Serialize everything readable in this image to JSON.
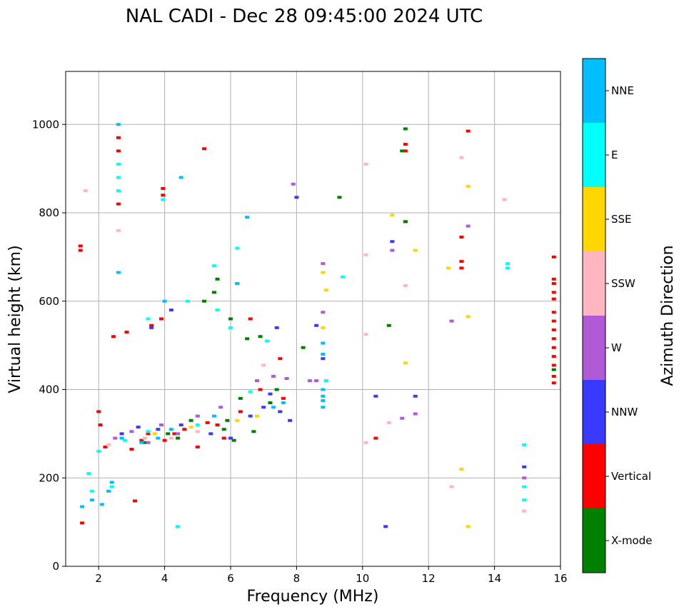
{
  "chart_data": {
    "type": "scatter",
    "title": "NAL CADI - Dec 28 09:45:00 2024 UTC",
    "xlabel": "Frequency (MHz)",
    "ylabel": "Virtual height (km)",
    "xlim": [
      1,
      16
    ],
    "ylim": [
      0,
      1120
    ],
    "xticks": [
      2,
      4,
      6,
      8,
      10,
      12,
      14,
      16
    ],
    "yticks": [
      0,
      200,
      400,
      600,
      800,
      1000
    ],
    "grid": true,
    "colorbar": {
      "title": "Azimuth Direction",
      "categories": [
        {
          "name": "X-mode",
          "color": "#008000"
        },
        {
          "name": "Vertical",
          "color": "#ff0000"
        },
        {
          "name": "NNW",
          "color": "#3a3aff"
        },
        {
          "name": "W",
          "color": "#b05ad8"
        },
        {
          "name": "SSW",
          "color": "#ffb6c1"
        },
        {
          "name": "SSE",
          "color": "#ffd700"
        },
        {
          "name": "E",
          "color": "#00ffff"
        },
        {
          "name": "NNE",
          "color": "#00bfff"
        }
      ]
    },
    "series": [
      {
        "name": "Vertical",
        "points": [
          [
            1.45,
            725
          ],
          [
            1.45,
            715
          ],
          [
            1.5,
            98
          ],
          [
            2.0,
            350
          ],
          [
            2.05,
            320
          ],
          [
            2.2,
            270
          ],
          [
            2.45,
            520
          ],
          [
            2.6,
            970
          ],
          [
            2.6,
            940
          ],
          [
            2.6,
            820
          ],
          [
            2.85,
            530
          ],
          [
            3.0,
            265
          ],
          [
            3.3,
            285
          ],
          [
            3.5,
            300
          ],
          [
            3.6,
            545
          ],
          [
            3.9,
            560
          ],
          [
            3.95,
            855
          ],
          [
            3.95,
            840
          ],
          [
            4.0,
            285
          ],
          [
            4.3,
            300
          ],
          [
            4.6,
            310
          ],
          [
            5.0,
            270
          ],
          [
            5.2,
            945
          ],
          [
            5.3,
            325
          ],
          [
            5.6,
            320
          ],
          [
            5.8,
            290
          ],
          [
            6.2,
            640
          ],
          [
            6.3,
            350
          ],
          [
            6.6,
            560
          ],
          [
            6.9,
            400
          ],
          [
            7.5,
            470
          ],
          [
            7.6,
            380
          ],
          [
            10.4,
            290
          ],
          [
            11.3,
            955
          ],
          [
            11.3,
            940
          ],
          [
            11.3,
            780
          ],
          [
            13.0,
            745
          ],
          [
            13.0,
            690
          ],
          [
            13.0,
            675
          ],
          [
            13.2,
            985
          ],
          [
            15.8,
            700
          ],
          [
            15.8,
            650
          ],
          [
            15.8,
            640
          ],
          [
            15.8,
            620
          ],
          [
            15.8,
            605
          ],
          [
            15.8,
            575
          ],
          [
            15.8,
            555
          ],
          [
            15.8,
            535
          ],
          [
            15.8,
            515
          ],
          [
            15.8,
            495
          ],
          [
            15.8,
            475
          ],
          [
            15.8,
            455
          ],
          [
            15.8,
            430
          ],
          [
            15.8,
            415
          ],
          [
            3.1,
            148
          ]
        ]
      },
      {
        "name": "X-mode",
        "points": [
          [
            3.4,
            280
          ],
          [
            4.1,
            300
          ],
          [
            4.4,
            290
          ],
          [
            5.2,
            600
          ],
          [
            5.5,
            620
          ],
          [
            5.8,
            310
          ],
          [
            5.9,
            330
          ],
          [
            6.1,
            285
          ],
          [
            6.3,
            380
          ],
          [
            6.5,
            515
          ],
          [
            6.7,
            305
          ],
          [
            6.9,
            520
          ],
          [
            7.2,
            370
          ],
          [
            7.4,
            400
          ],
          [
            8.2,
            495
          ],
          [
            9.3,
            835
          ],
          [
            10.8,
            545
          ],
          [
            11.2,
            940
          ],
          [
            11.3,
            990
          ],
          [
            11.3,
            780
          ],
          [
            15.8,
            445
          ],
          [
            6.0,
            560
          ],
          [
            5.6,
            650
          ],
          [
            4.8,
            330
          ]
        ]
      },
      {
        "name": "NNW",
        "points": [
          [
            2.7,
            300
          ],
          [
            3.2,
            315
          ],
          [
            3.8,
            310
          ],
          [
            4.5,
            320
          ],
          [
            5.4,
            300
          ],
          [
            6.0,
            290
          ],
          [
            6.6,
            340
          ],
          [
            7.0,
            360
          ],
          [
            7.2,
            390
          ],
          [
            7.5,
            350
          ],
          [
            7.8,
            330
          ],
          [
            8.0,
            835
          ],
          [
            8.6,
            545
          ],
          [
            8.8,
            470
          ],
          [
            10.4,
            385
          ],
          [
            10.7,
            90
          ],
          [
            10.9,
            735
          ],
          [
            11.6,
            385
          ],
          [
            14.9,
            225
          ],
          [
            3.6,
            540
          ],
          [
            4.2,
            580
          ],
          [
            7.4,
            540
          ]
        ]
      },
      {
        "name": "W",
        "points": [
          [
            2.5,
            290
          ],
          [
            3.0,
            305
          ],
          [
            3.5,
            280
          ],
          [
            3.9,
            320
          ],
          [
            4.4,
            300
          ],
          [
            5.0,
            340
          ],
          [
            5.7,
            360
          ],
          [
            6.8,
            420
          ],
          [
            7.3,
            430
          ],
          [
            7.7,
            425
          ],
          [
            7.9,
            865
          ],
          [
            8.4,
            420
          ],
          [
            8.6,
            420
          ],
          [
            8.8,
            685
          ],
          [
            8.8,
            575
          ],
          [
            10.9,
            715
          ],
          [
            11.2,
            335
          ],
          [
            11.6,
            345
          ],
          [
            12.7,
            555
          ],
          [
            13.2,
            770
          ],
          [
            14.9,
            200
          ]
        ]
      },
      {
        "name": "SSW",
        "points": [
          [
            1.6,
            850
          ],
          [
            2.3,
            275
          ],
          [
            2.6,
            760
          ],
          [
            3.4,
            290
          ],
          [
            4.2,
            290
          ],
          [
            5.0,
            305
          ],
          [
            7.0,
            455
          ],
          [
            10.1,
            910
          ],
          [
            10.1,
            705
          ],
          [
            10.1,
            525
          ],
          [
            10.1,
            280
          ],
          [
            10.8,
            325
          ],
          [
            11.3,
            635
          ],
          [
            12.7,
            180
          ],
          [
            13.0,
            925
          ],
          [
            14.3,
            830
          ],
          [
            14.9,
            125
          ]
        ]
      },
      {
        "name": "SSE",
        "points": [
          [
            3.7,
            300
          ],
          [
            4.8,
            315
          ],
          [
            6.2,
            330
          ],
          [
            6.8,
            340
          ],
          [
            8.8,
            665
          ],
          [
            8.8,
            540
          ],
          [
            8.9,
            625
          ],
          [
            10.9,
            795
          ],
          [
            11.6,
            715
          ],
          [
            11.3,
            460
          ],
          [
            12.6,
            675
          ],
          [
            13.0,
            220
          ],
          [
            13.2,
            860
          ],
          [
            13.2,
            565
          ],
          [
            13.2,
            90
          ]
        ]
      },
      {
        "name": "E",
        "points": [
          [
            1.7,
            210
          ],
          [
            1.8,
            170
          ],
          [
            2.0,
            260
          ],
          [
            2.4,
            180
          ],
          [
            2.6,
            910
          ],
          [
            2.6,
            880
          ],
          [
            2.6,
            850
          ],
          [
            2.8,
            285
          ],
          [
            3.5,
            305
          ],
          [
            3.5,
            560
          ],
          [
            3.95,
            830
          ],
          [
            4.4,
            90
          ],
          [
            5.0,
            320
          ],
          [
            5.6,
            580
          ],
          [
            6.0,
            540
          ],
          [
            6.2,
            720
          ],
          [
            6.6,
            395
          ],
          [
            7.1,
            510
          ],
          [
            8.9,
            420
          ],
          [
            9.4,
            655
          ],
          [
            14.4,
            685
          ],
          [
            14.4,
            675
          ],
          [
            14.9,
            275
          ],
          [
            14.9,
            180
          ],
          [
            14.9,
            150
          ],
          [
            4.7,
            600
          ],
          [
            5.5,
            680
          ]
        ]
      },
      {
        "name": "NNE",
        "points": [
          [
            1.5,
            135
          ],
          [
            1.8,
            150
          ],
          [
            2.1,
            140
          ],
          [
            2.3,
            170
          ],
          [
            2.4,
            190
          ],
          [
            2.6,
            1000
          ],
          [
            2.6,
            665
          ],
          [
            2.7,
            290
          ],
          [
            3.3,
            280
          ],
          [
            3.8,
            290
          ],
          [
            4.2,
            310
          ],
          [
            4.5,
            880
          ],
          [
            5.5,
            340
          ],
          [
            6.2,
            640
          ],
          [
            6.5,
            790
          ],
          [
            7.3,
            360
          ],
          [
            7.6,
            370
          ],
          [
            8.8,
            505
          ],
          [
            8.8,
            480
          ],
          [
            8.8,
            400
          ],
          [
            8.8,
            385
          ],
          [
            8.8,
            375
          ],
          [
            8.8,
            360
          ],
          [
            4.0,
            600
          ]
        ]
      }
    ]
  }
}
